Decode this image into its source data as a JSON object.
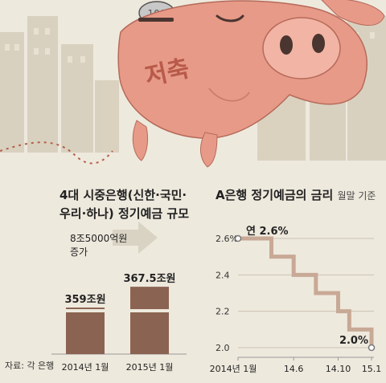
{
  "illustration": {
    "piggy_text": "저축",
    "coin_text": "100"
  },
  "left_chart": {
    "title_line1": "4대 시중은행(신한·국민·",
    "title_line2": "우리·하나) 정기예금 규모",
    "increase_label_line1": "8조5000억원",
    "increase_label_line2": "증가"
  },
  "right_chart": {
    "title": "A은행 정기예금의 금리",
    "subtitle": "월말 기준"
  },
  "source": "자료: 각 은행",
  "colors": {
    "bar": "#8b6352",
    "line": "#c8a996",
    "marker": "#777777",
    "text": "#222222",
    "background": "#eee9dd"
  },
  "chart_data": [
    {
      "type": "bar",
      "title": "4대 시중은행(신한·국민·우리·하나) 정기예금 규모",
      "categories": [
        "2014년 1월",
        "2015년 1월"
      ],
      "values": [
        359,
        367.5
      ],
      "value_labels": [
        "359조원",
        "367.5조원"
      ],
      "annotation": "8조5000억원 증가",
      "axis_break": true
    },
    {
      "type": "line",
      "title": "A은행 정기예금의 금리",
      "subtitle": "월말 기준",
      "step": true,
      "x": [
        "2014-01",
        "2014-04",
        "2014-06",
        "2014-08",
        "2014-10",
        "2014-11",
        "2015-01"
      ],
      "y": [
        2.6,
        2.5,
        2.4,
        2.3,
        2.2,
        2.1,
        2.0
      ],
      "x_tick_labels": [
        "2014년 1월",
        "14.6",
        "14.10",
        "15.1"
      ],
      "y_ticks": [
        2.0,
        2.2,
        2.4,
        2.6
      ],
      "y_tick_labels": [
        "2.0",
        "2.2",
        "2.4",
        "2.6%"
      ],
      "ylim": [
        2.0,
        2.6
      ],
      "annotations": [
        "연 2.6%",
        "2.0%"
      ],
      "grid": "horizontal"
    }
  ]
}
